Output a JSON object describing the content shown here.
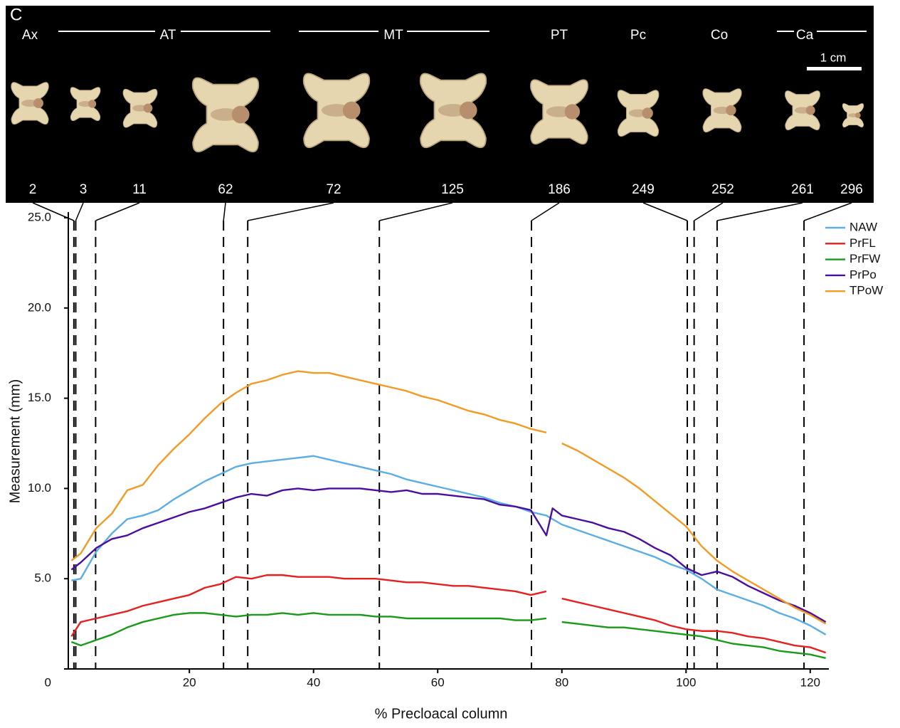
{
  "figure": {
    "panel": "C",
    "regions": [
      "Ax",
      "AT",
      "MT",
      "PT",
      "Pc",
      "Co",
      "Ca"
    ],
    "scale_bar": "1 cm"
  },
  "chart_data": {
    "type": "line",
    "x_label": "% Precloacal column",
    "y_label": "Measurement (mm)",
    "xlim": [
      0.5,
      123
    ],
    "ylim": [
      0,
      25
    ],
    "xticks": [
      20,
      40,
      60,
      80,
      100,
      120
    ],
    "yticks": [
      0,
      {
        "value": 5,
        "label": "5.0"
      },
      {
        "value": 10,
        "label": "10.0"
      },
      {
        "value": 15,
        "label": "15.0"
      },
      {
        "value": 20,
        "label": "20.0"
      },
      {
        "value": 25,
        "label": "25.0"
      }
    ],
    "legend": "upper right",
    "markers": [
      {
        "label": "2",
        "x": 1.4
      },
      {
        "label": "3",
        "x": 1.7
      },
      {
        "label": "11",
        "x": 4.9
      },
      {
        "label": "62",
        "x": 25.5
      },
      {
        "label": "72",
        "x": 29.4
      },
      {
        "label": "125",
        "x": 50.6
      },
      {
        "label": "186",
        "x": 75.1
      },
      {
        "label": "249",
        "x": 100.2
      },
      {
        "label": "252",
        "x": 101.3
      },
      {
        "label": "261",
        "x": 105.0
      },
      {
        "label": "296",
        "x": 119.0
      }
    ],
    "x": [
      1,
      2.5,
      5,
      7.5,
      10,
      12.5,
      15,
      17.5,
      20,
      22.5,
      25,
      27.5,
      30,
      32.5,
      35,
      37.5,
      40,
      42.5,
      45,
      47.5,
      50,
      52.5,
      55,
      57.5,
      60,
      62.5,
      65,
      67.5,
      70,
      72.5,
      75,
      77.5,
      78.5,
      80,
      82.5,
      85,
      87.5,
      90,
      92.5,
      95,
      97.5,
      100,
      102.5,
      105,
      107.5,
      110,
      112.5,
      115,
      117.5,
      120,
      122.5
    ],
    "series": [
      {
        "name": "NAW",
        "color": "#5aaee5",
        "values": [
          4.9,
          5.0,
          6.5,
          7.5,
          8.3,
          8.5,
          8.8,
          9.4,
          9.9,
          10.4,
          10.8,
          11.2,
          11.4,
          11.5,
          11.6,
          11.7,
          11.8,
          11.6,
          11.4,
          11.2,
          11.0,
          10.8,
          10.5,
          10.3,
          10.1,
          9.9,
          9.7,
          9.5,
          9.2,
          9.0,
          8.7,
          8.5,
          8.3,
          8.0,
          7.7,
          7.4,
          7.1,
          6.8,
          6.5,
          6.2,
          5.8,
          5.5,
          5.0,
          4.4,
          4.1,
          3.8,
          3.5,
          3.1,
          2.8,
          2.4,
          1.9
        ]
      },
      {
        "name": "PrFL",
        "color": "#e52020",
        "values": [
          1.8,
          2.6,
          2.8,
          3.0,
          3.2,
          3.5,
          3.7,
          3.9,
          4.1,
          4.5,
          4.7,
          5.1,
          5.0,
          5.2,
          5.2,
          5.1,
          5.1,
          5.1,
          5.0,
          5.0,
          5.0,
          4.9,
          4.8,
          4.8,
          4.7,
          4.6,
          4.6,
          4.5,
          4.4,
          4.3,
          4.1,
          4.3,
          null,
          3.9,
          3.7,
          3.5,
          3.3,
          3.1,
          2.9,
          2.7,
          2.4,
          2.2,
          2.1,
          2.1,
          2.0,
          1.8,
          1.7,
          1.5,
          1.3,
          1.2,
          0.9
        ]
      },
      {
        "name": "PrFW",
        "color": "#1a9a1a",
        "values": [
          1.5,
          1.3,
          1.6,
          1.9,
          2.3,
          2.6,
          2.8,
          3.0,
          3.1,
          3.1,
          3.0,
          2.9,
          3.0,
          3.0,
          3.1,
          3.0,
          3.1,
          3.0,
          3.0,
          3.0,
          2.9,
          2.9,
          2.8,
          2.8,
          2.8,
          2.8,
          2.8,
          2.8,
          2.8,
          2.7,
          2.7,
          2.8,
          null,
          2.6,
          2.5,
          2.4,
          2.3,
          2.3,
          2.2,
          2.1,
          2.0,
          1.9,
          1.8,
          1.6,
          1.4,
          1.3,
          1.2,
          1.0,
          0.9,
          0.8,
          0.6
        ]
      },
      {
        "name": "PrPo",
        "color": "#4b0f9e",
        "values": [
          5.5,
          5.9,
          6.7,
          7.2,
          7.4,
          7.8,
          8.1,
          8.4,
          8.7,
          8.9,
          9.2,
          9.5,
          9.7,
          9.6,
          9.9,
          10.0,
          9.9,
          10.0,
          10.0,
          10.0,
          9.9,
          9.8,
          9.9,
          9.7,
          9.7,
          9.6,
          9.5,
          9.4,
          9.1,
          9.0,
          8.8,
          7.4,
          8.9,
          8.5,
          8.3,
          8.1,
          7.8,
          7.6,
          7.2,
          6.7,
          6.3,
          5.6,
          5.2,
          5.4,
          5.1,
          4.6,
          4.2,
          3.8,
          3.5,
          3.1,
          2.6
        ]
      },
      {
        "name": "TPoW",
        "color": "#f39a24",
        "values": [
          6.0,
          6.4,
          7.8,
          8.6,
          9.9,
          10.2,
          11.3,
          12.2,
          13.0,
          13.9,
          14.7,
          15.3,
          15.8,
          16.0,
          16.3,
          16.5,
          16.4,
          16.4,
          16.2,
          16.0,
          15.8,
          15.6,
          15.4,
          15.1,
          14.9,
          14.6,
          14.3,
          14.1,
          13.8,
          13.6,
          13.3,
          13.1,
          null,
          12.5,
          12.1,
          11.6,
          11.1,
          10.6,
          10.0,
          9.3,
          8.6,
          7.9,
          6.8,
          6.0,
          5.4,
          4.9,
          4.4,
          3.9,
          3.4,
          3.0,
          2.5
        ]
      }
    ]
  }
}
